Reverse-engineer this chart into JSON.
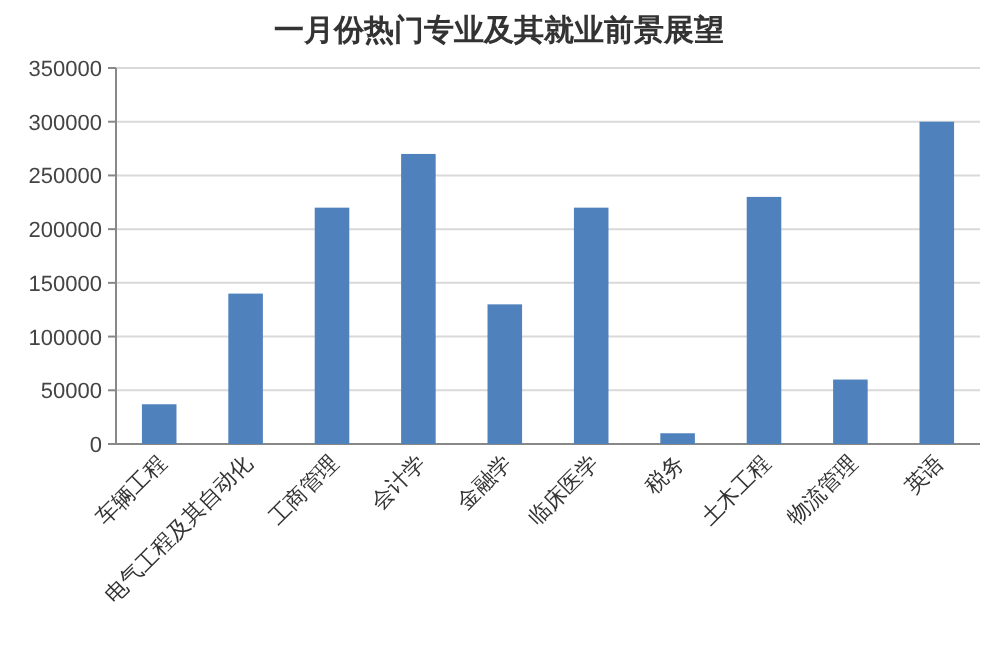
{
  "chart_data": {
    "type": "bar",
    "title": "一月份热门专业及其就业前景展望",
    "categories": [
      "车辆工程",
      "电气工程及其自动化",
      "工商管理",
      "会计学",
      "金融学",
      "临床医学",
      "税务",
      "土木工程",
      "物流管理",
      "英语"
    ],
    "values": [
      37000,
      140000,
      220000,
      270000,
      130000,
      220000,
      10000,
      230000,
      60000,
      300000
    ],
    "color": "#4f81bd",
    "ylim": [
      0,
      350000
    ],
    "yticks": [
      0,
      50000,
      100000,
      150000,
      200000,
      250000,
      300000,
      350000
    ],
    "grid": "y"
  }
}
